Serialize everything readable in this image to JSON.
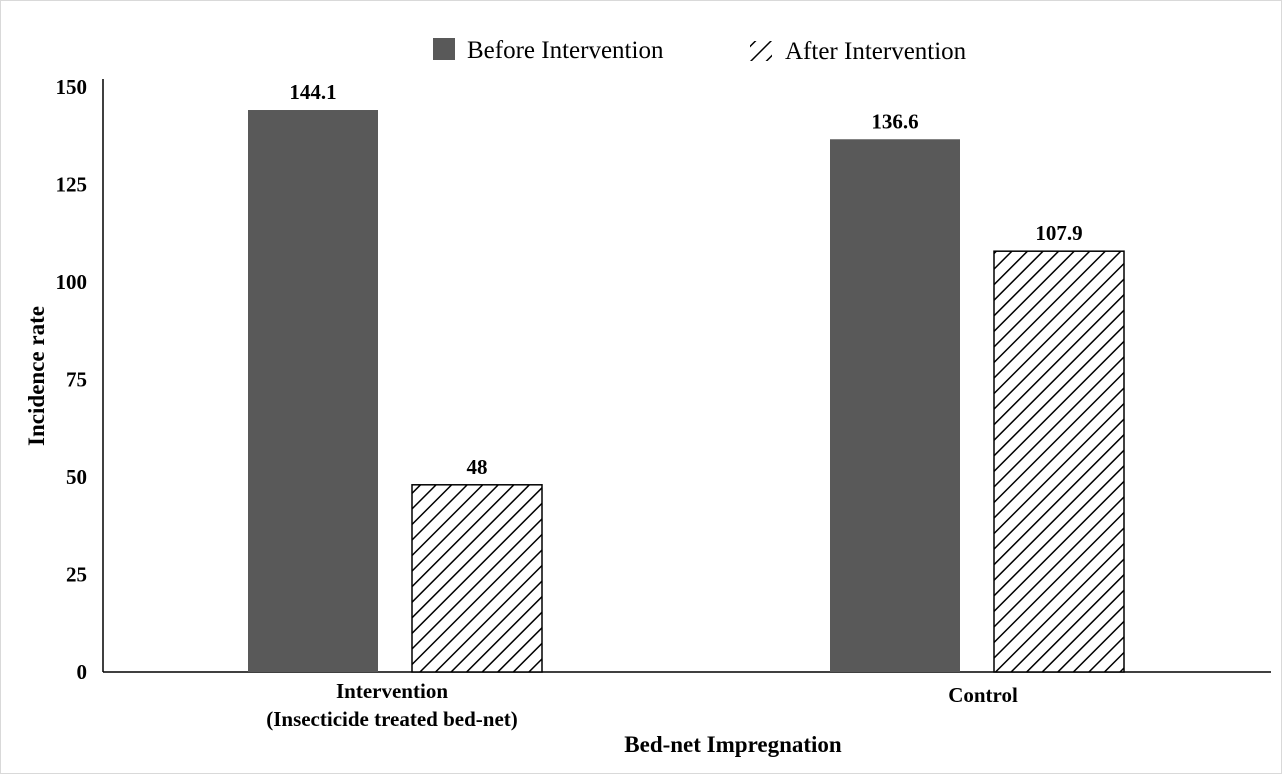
{
  "chart_data": {
    "type": "bar",
    "title": "",
    "xlabel": "Bed-net Impregnation",
    "ylabel": "Incidence rate",
    "ylim": [
      0,
      150
    ],
    "yticks": [
      "0",
      "25",
      "50",
      "75",
      "100",
      "125",
      "150"
    ],
    "grid": false,
    "legend_position": "top",
    "categories": [
      {
        "line1": "Intervention",
        "line2": "(Insecticide treated bed-net)"
      },
      {
        "line1": "Control",
        "line2": ""
      }
    ],
    "series": [
      {
        "name": "Before Intervention",
        "values": [
          144.1,
          136.6
        ],
        "labels": [
          "144.1",
          "136.6"
        ],
        "color": "#595959",
        "pattern": "solid"
      },
      {
        "name": "After Intervention",
        "values": [
          48,
          107.9
        ],
        "labels": [
          "48",
          "107.9"
        ],
        "color": "#000000",
        "pattern": "diagonal-hatch"
      }
    ]
  }
}
